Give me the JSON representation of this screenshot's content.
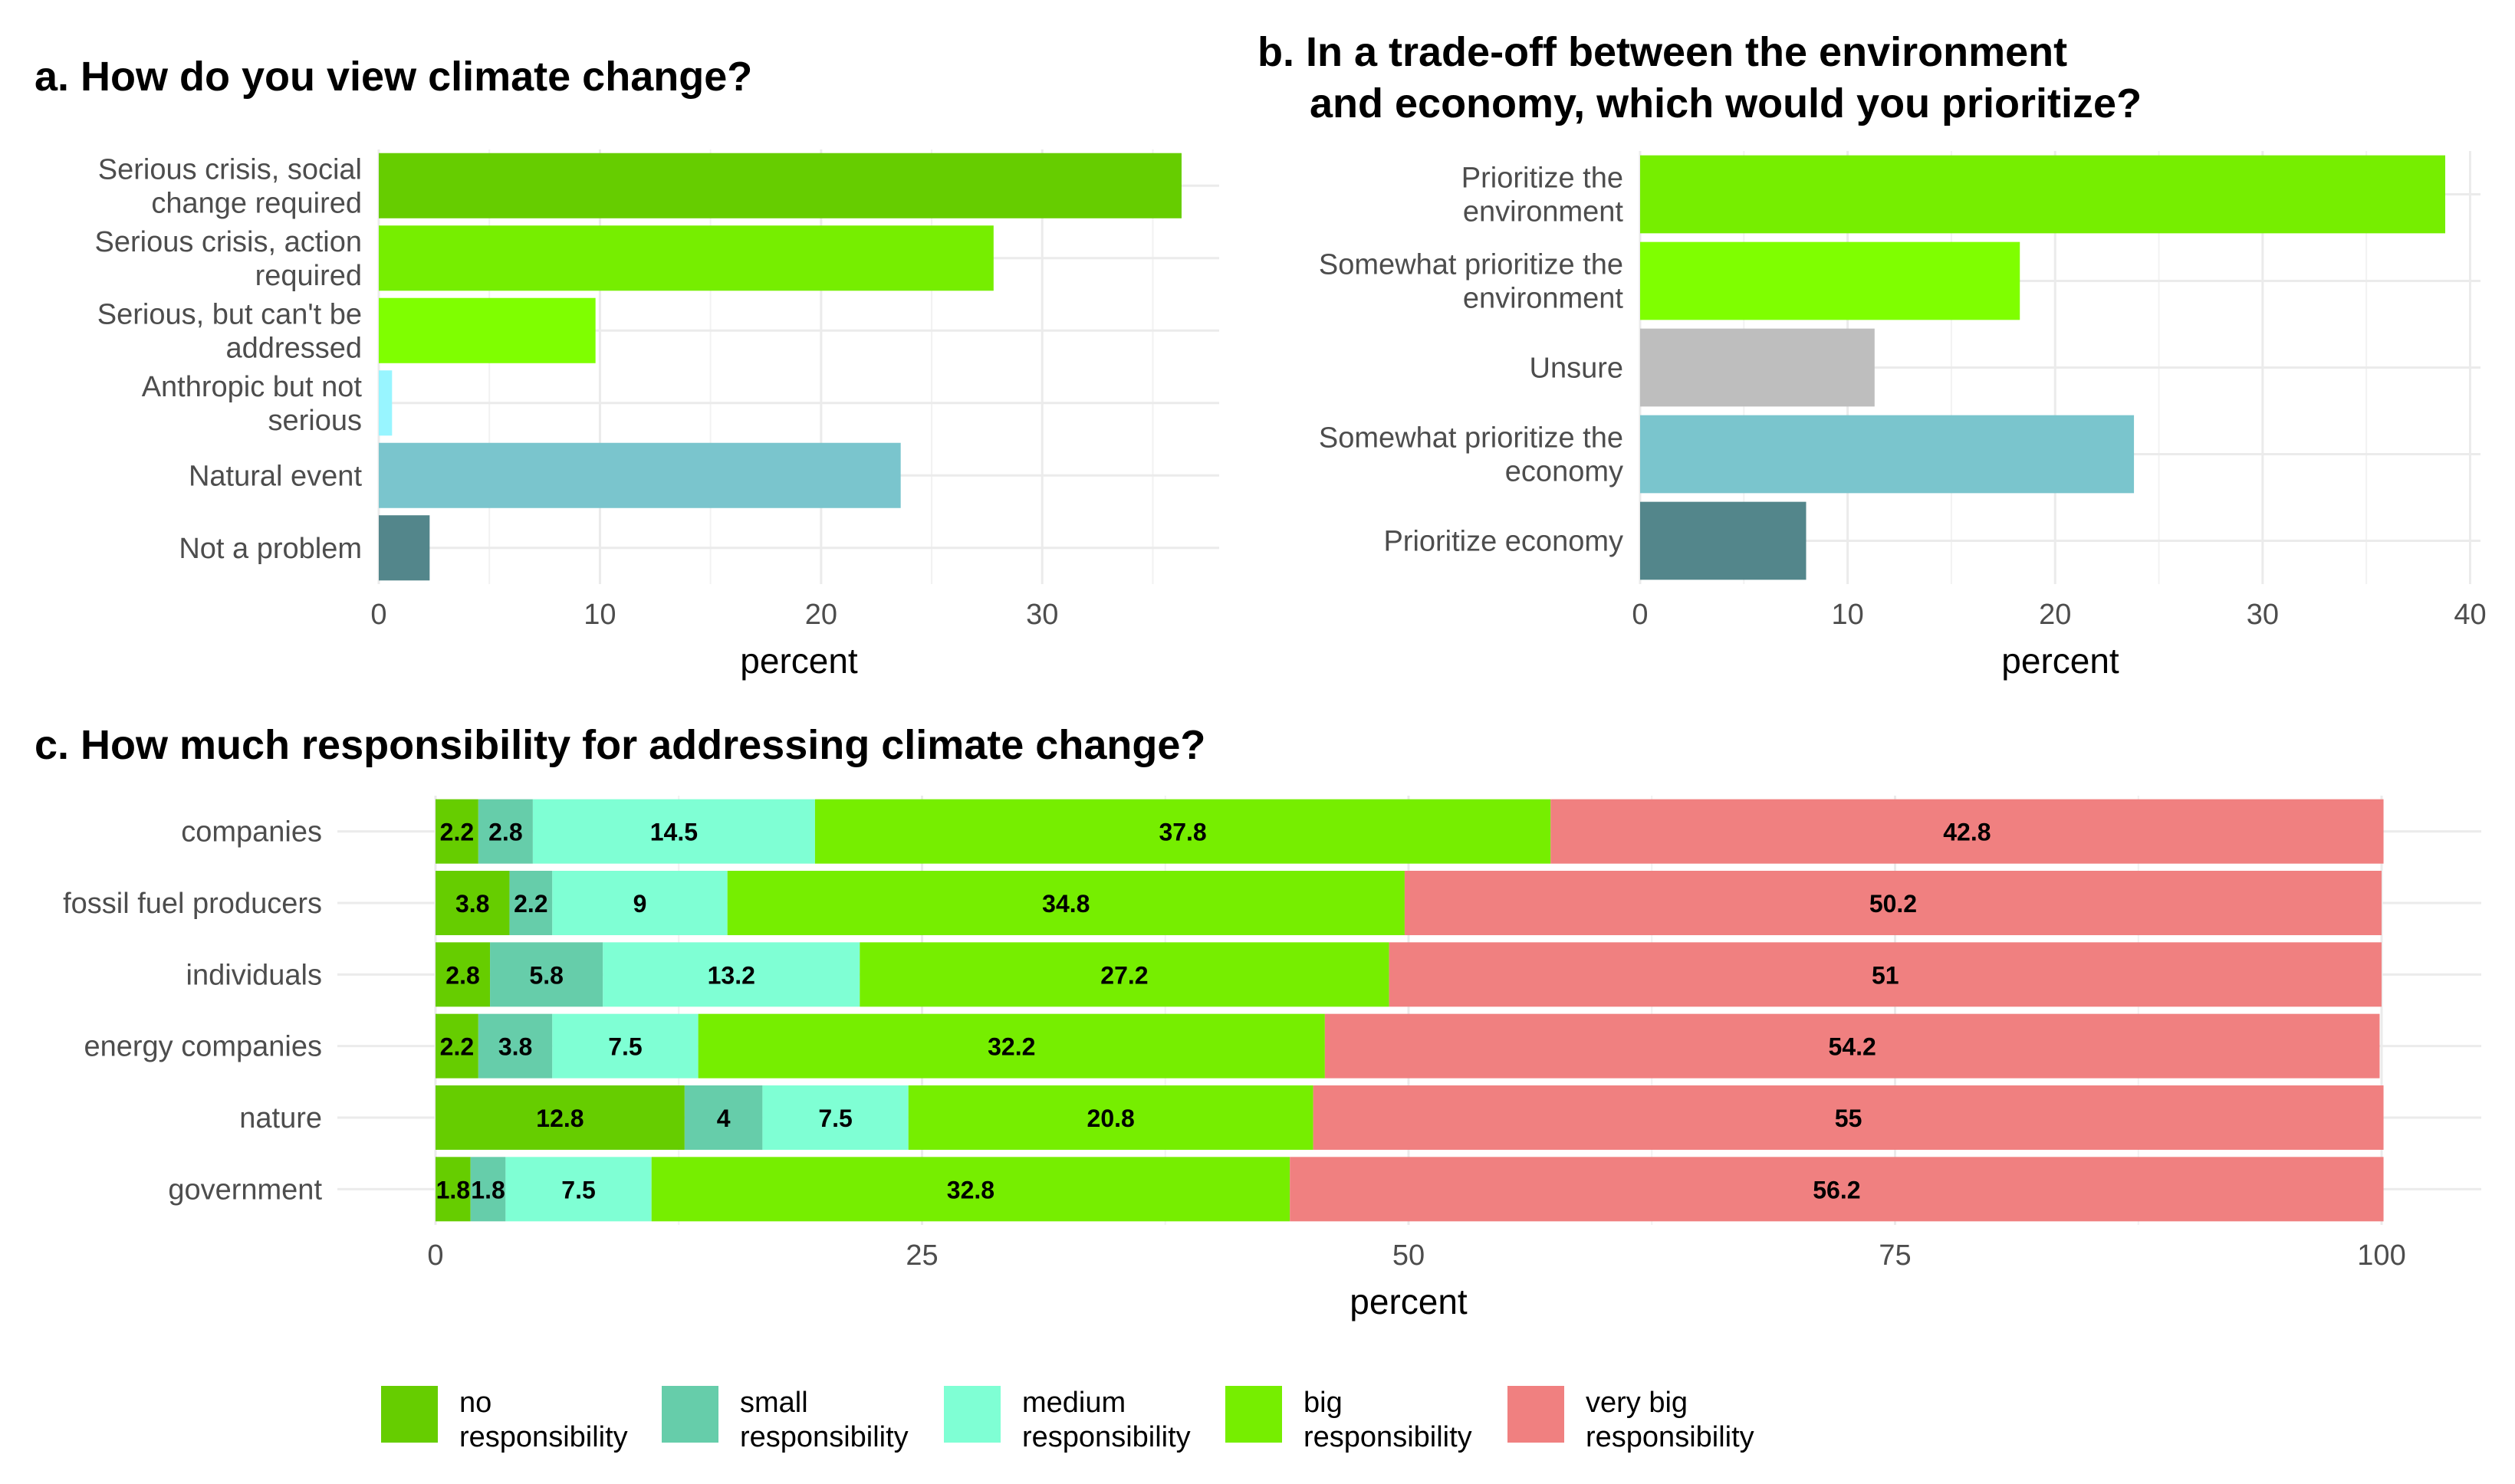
{
  "colors": {
    "grid_major": "#ebebeb",
    "grid_minor": "#f2f2f2",
    "a_bars": [
      "#66cd00",
      "#76ee00",
      "#7fff00",
      "#98f5ff",
      "#7ac5cd",
      "#53868b"
    ],
    "b_bars": [
      "#76ee00",
      "#7fff00",
      "#bebebe",
      "#7ac5cd",
      "#53868b"
    ],
    "c_levels": [
      "#66cd00",
      "#66cdaa",
      "#7fffd4",
      "#76ee00",
      "#f08080"
    ]
  },
  "chart_data": [
    {
      "id": "a",
      "type": "bar",
      "orientation": "horizontal",
      "title": "a. How do you view climate change?",
      "categories": [
        [
          "Serious crisis, social",
          "change required"
        ],
        [
          "Serious crisis, action",
          "required"
        ],
        [
          "Serious, but can't be",
          "addressed"
        ],
        [
          "Anthropic but not",
          "serious"
        ],
        [
          "Natural event"
        ],
        [
          "Not a problem"
        ]
      ],
      "values": [
        36.3,
        27.8,
        9.8,
        0.6,
        23.6,
        2.3
      ],
      "xlabel": "percent",
      "xlim": [
        0,
        38
      ],
      "xticks": [
        0,
        10,
        20,
        30
      ],
      "tick_labels": [
        "0",
        "10",
        "20",
        "30"
      ]
    },
    {
      "id": "b",
      "type": "bar",
      "orientation": "horizontal",
      "title": [
        "b. In a trade-off between the environment",
        "and economy, which would you prioritize?"
      ],
      "categories": [
        [
          "Prioritize the",
          "environment"
        ],
        [
          "Somewhat prioritize the",
          "environment"
        ],
        [
          "Unsure"
        ],
        [
          "Somewhat prioritize the",
          "economy"
        ],
        [
          "Prioritize economy"
        ]
      ],
      "values": [
        38.8,
        18.3,
        11.3,
        23.8,
        8.0
      ],
      "xlabel": "percent",
      "xlim": [
        0,
        40.5
      ],
      "xticks": [
        0,
        10,
        20,
        30,
        40
      ],
      "tick_labels": [
        "0",
        "10",
        "20",
        "30",
        "40"
      ]
    },
    {
      "id": "c",
      "type": "bar",
      "orientation": "horizontal",
      "stacked": true,
      "title": "c. How much responsibility for addressing climate change?",
      "categories": [
        "companies",
        "fossil fuel producers",
        "individuals",
        "energy companies",
        "nature",
        "government"
      ],
      "series": [
        {
          "name": [
            "no",
            "responsibility"
          ],
          "values": [
            2.2,
            3.8,
            2.8,
            2.2,
            12.8,
            1.8
          ]
        },
        {
          "name": [
            "small",
            "responsibility"
          ],
          "values": [
            2.8,
            2.2,
            5.8,
            3.8,
            4,
            1.8
          ]
        },
        {
          "name": [
            "medium",
            "responsibility"
          ],
          "values": [
            14.5,
            9,
            13.2,
            7.5,
            7.5,
            7.5
          ]
        },
        {
          "name": [
            "big",
            "responsibility"
          ],
          "values": [
            37.8,
            34.8,
            27.2,
            32.2,
            20.8,
            32.8
          ]
        },
        {
          "name": [
            "very big",
            "responsibility"
          ],
          "values": [
            42.8,
            50.2,
            51,
            54.2,
            55,
            56.2
          ]
        }
      ],
      "labels": [
        [
          "2.2",
          "2.8",
          "14.5",
          "37.8",
          "42.8"
        ],
        [
          "3.8",
          "2.2",
          "9",
          "34.8",
          "50.2"
        ],
        [
          "2.8",
          "5.8",
          "13.2",
          "27.2",
          "51"
        ],
        [
          "2.2",
          "3.8",
          "7.5",
          "32.2",
          "54.2"
        ],
        [
          "12.8",
          "4",
          "7.5",
          "20.8",
          "55"
        ],
        [
          "1.8",
          "1.8",
          "7.5",
          "32.8",
          "56.2"
        ]
      ],
      "xlabel": "percent",
      "xlim": [
        0,
        100
      ],
      "xticks": [
        0,
        25,
        50,
        75,
        100
      ],
      "tick_labels": [
        "0",
        "25",
        "50",
        "75",
        "100"
      ],
      "legend_position": "bottom"
    }
  ]
}
